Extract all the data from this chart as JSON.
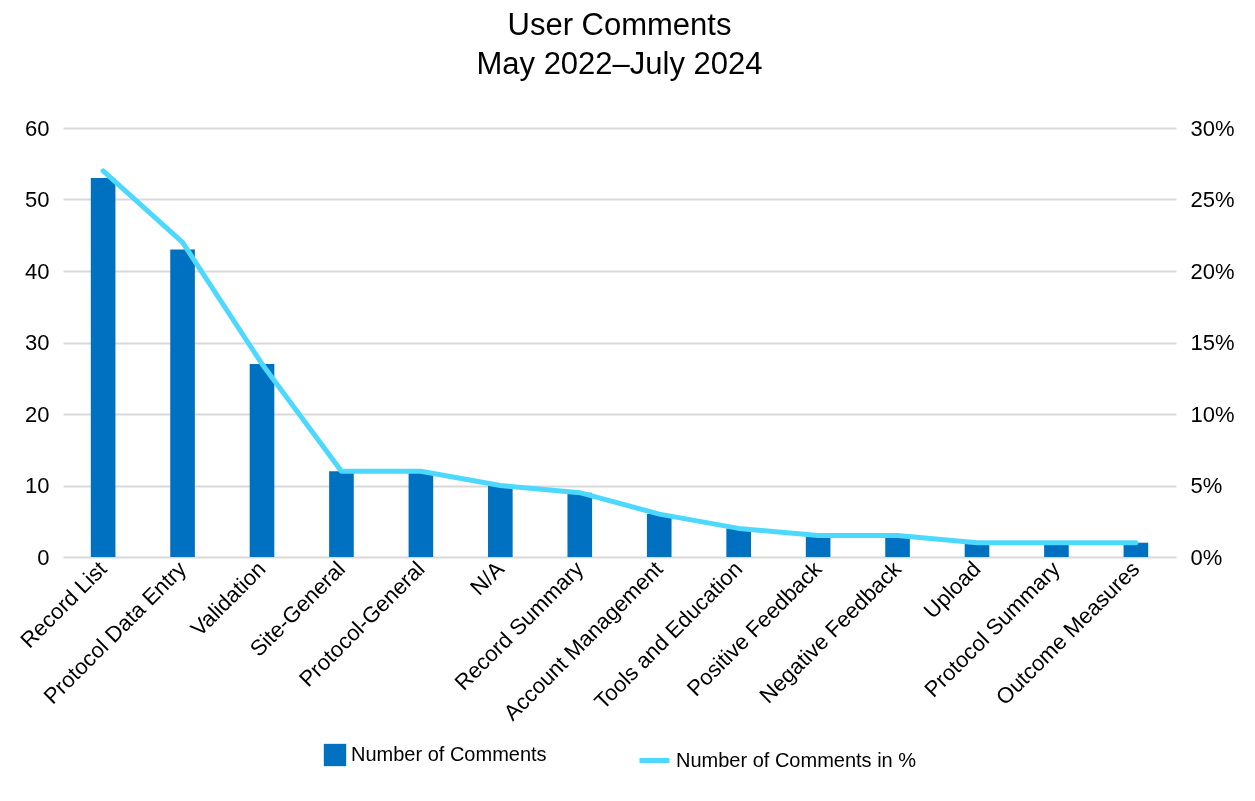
{
  "chart_data": {
    "type": "bar",
    "title": "User Comments",
    "subtitle": "May 2022–July 2024",
    "categories": [
      "Record List",
      "Protocol Data Entry",
      "Validation",
      "Site-General",
      "Protocol-General",
      "N/A",
      "Record Summary",
      "Account Management",
      "Tools and Education",
      "Positive Feedback",
      "Negative Feedback",
      "Upload",
      "Protocol Summary",
      "Outcome Measures"
    ],
    "series": [
      {
        "name": "Number of Comments",
        "color": "#0070c0",
        "values": [
          53,
          43,
          27,
          12,
          12,
          10,
          9,
          6,
          4,
          3,
          3,
          2,
          2,
          2
        ]
      },
      {
        "name": "Number of Comments in %",
        "type": "line",
        "axis": "y2",
        "color": "#4dd8ff",
        "values": [
          27,
          22,
          13.5,
          6,
          6,
          5,
          4.5,
          3,
          2,
          1.5,
          1.5,
          1,
          1,
          1
        ]
      }
    ],
    "ylim": [
      0,
      60
    ],
    "yticks": [
      0,
      10,
      20,
      30,
      40,
      50,
      60
    ],
    "y2lim": [
      0,
      30
    ],
    "y2ticks": [
      {
        "value": 0,
        "label": "0%"
      },
      {
        "value": 5,
        "label": "5%"
      },
      {
        "value": 10,
        "label": "10%"
      },
      {
        "value": 15,
        "label": "15%"
      },
      {
        "value": 20,
        "label": "20%"
      },
      {
        "value": 25,
        "label": "25%"
      },
      {
        "value": 30,
        "label": "30%"
      }
    ],
    "grid": "y",
    "legend": "bottom",
    "marker": "none",
    "line_style": "solid"
  }
}
